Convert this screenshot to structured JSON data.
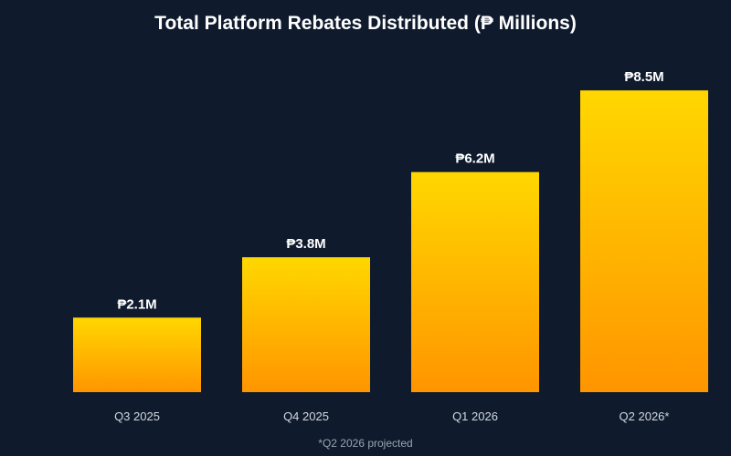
{
  "chart_data": {
    "type": "bar",
    "title": "Total Platform Rebates Distributed (₱ Millions)",
    "categories": [
      "Q3 2025",
      "Q4 2025",
      "Q1 2026",
      "Q2 2026*"
    ],
    "values": [
      2.1,
      3.8,
      6.2,
      8.5
    ],
    "data_labels": [
      "₱2.1M",
      "₱3.8M",
      "₱6.2M",
      "₱8.5M"
    ],
    "xlabel": "",
    "ylabel": "",
    "ylim": [
      0,
      9.3
    ],
    "grid": false,
    "legend": "none",
    "footnote": "*Q2 2026 projected",
    "colors": {
      "background": "#0f1b2d",
      "bar_top": "#ffd700",
      "bar_bottom": "#ff9500"
    }
  }
}
